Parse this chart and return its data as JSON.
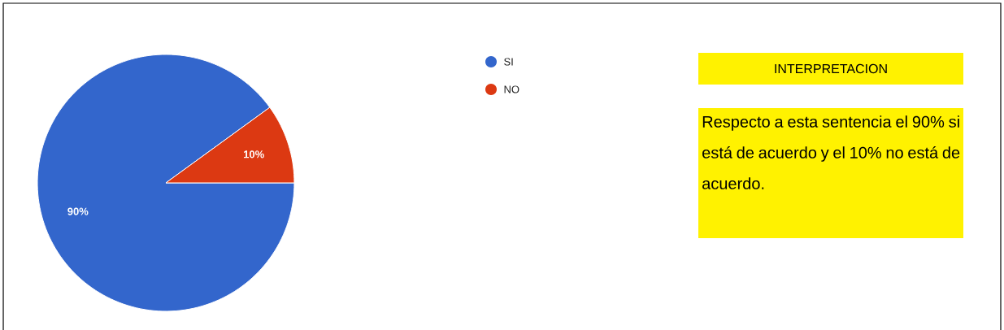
{
  "chart_data": {
    "type": "pie",
    "categories": [
      "SI",
      "NO"
    ],
    "values": [
      90,
      10
    ],
    "colors": [
      "#3366cc",
      "#dc3912"
    ],
    "value_labels": [
      "90%",
      "10%"
    ],
    "legend": "top right",
    "annotations": [
      "INTERPRETACION",
      "Respecto a esta sentencia el 90% si está de acuerdo y el 10% no está de acuerdo."
    ]
  }
}
